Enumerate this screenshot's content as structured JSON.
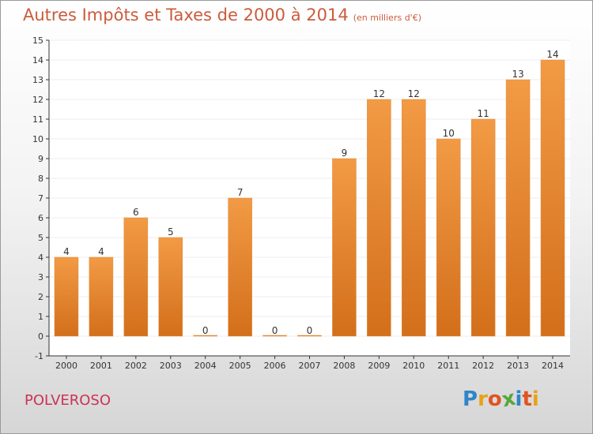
{
  "header": {
    "title": "Autres Impôts et Taxes de 2000 à 2014",
    "subtitle": "(en milliers d'€)"
  },
  "footer": {
    "commune": "POLVEROSO",
    "brand_letters": [
      "P",
      "r",
      "o",
      "x",
      "i",
      "t",
      "i"
    ],
    "brand_colors": [
      "#2e86c8",
      "#e8a21a",
      "#e0541f",
      "#55a83c",
      "#2e86c8",
      "#e0541f",
      "#e8a21a"
    ]
  },
  "colors": {
    "bar": "#f29a45",
    "bar_dark": "#d36f1b",
    "axis": "#333333",
    "grid": "#eeeeee",
    "title": "#cc5b3c",
    "commune": "#cc3355"
  },
  "chart_data": {
    "type": "bar",
    "categories": [
      "2000",
      "2001",
      "2002",
      "2003",
      "2004",
      "2005",
      "2006",
      "2007",
      "2008",
      "2009",
      "2010",
      "2011",
      "2012",
      "2013",
      "2014"
    ],
    "values": [
      4,
      4,
      6,
      5,
      0,
      7,
      0,
      0,
      9,
      12,
      12,
      10,
      11,
      13,
      14
    ],
    "data_labels": [
      "4",
      "4",
      "6",
      "5",
      "0",
      "7",
      "0",
      "0",
      "9",
      "12",
      "12",
      "10",
      "11",
      "13",
      "14"
    ],
    "title": "Autres Impôts et Taxes de 2000 à 2014",
    "subtitle": "(en milliers d'€)",
    "xlabel": "",
    "ylabel": "",
    "ylim": [
      -1,
      15
    ],
    "yticks": [
      -1,
      0,
      1,
      2,
      3,
      4,
      5,
      6,
      7,
      8,
      9,
      10,
      11,
      12,
      13,
      14,
      15
    ],
    "ytick_labels": [
      "-1",
      "0",
      "1",
      "2",
      "3",
      "4",
      "5",
      "6",
      "7",
      "8",
      "9",
      "10",
      "11",
      "12",
      "13",
      "14",
      "15"
    ],
    "grid": true,
    "legend": "none"
  }
}
